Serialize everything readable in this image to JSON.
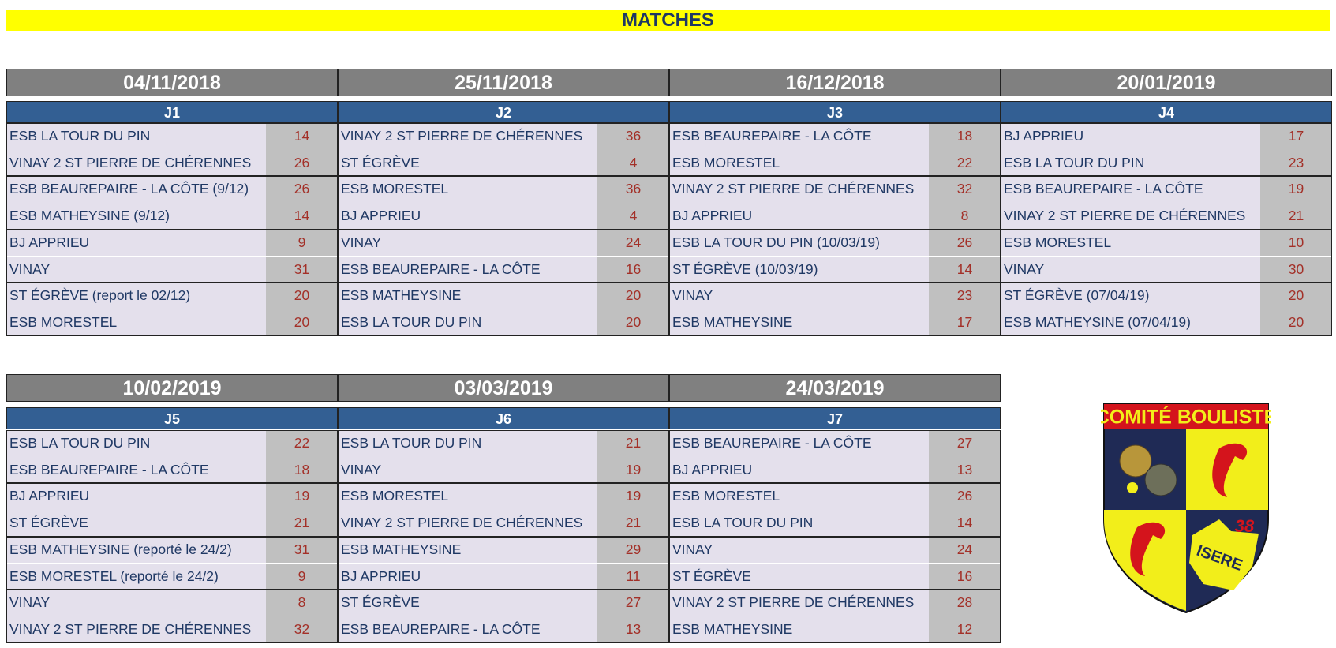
{
  "header": {
    "title": "MATCHES"
  },
  "rounds": [
    {
      "date": "04/11/2018",
      "label": "J1",
      "matches": [
        {
          "home": "ESB LA TOUR DU PIN",
          "home_score": 14,
          "away": "VINAY 2 ST PIERRE DE CHÉRENNES",
          "away_score": 26
        },
        {
          "home": "ESB BEAUREPAIRE - LA CÔTE (9/12)",
          "home_score": 26,
          "away": "ESB MATHEYSINE (9/12)",
          "away_score": 14
        },
        {
          "home": "BJ APPRIEU",
          "home_score": 9,
          "away": "VINAY",
          "away_score": 31
        },
        {
          "home": "ST ÉGRÈVE (report le 02/12)",
          "home_score": 20,
          "away": "ESB MORESTEL",
          "away_score": 20
        }
      ]
    },
    {
      "date": "25/11/2018",
      "label": "J2",
      "matches": [
        {
          "home": "VINAY 2 ST PIERRE DE CHÉRENNES",
          "home_score": 36,
          "away": "ST ÉGRÈVE",
          "away_score": 4
        },
        {
          "home": "ESB MORESTEL",
          "home_score": 36,
          "away": "BJ APPRIEU",
          "away_score": 4
        },
        {
          "home": "VINAY",
          "home_score": 24,
          "away": "ESB BEAUREPAIRE - LA CÔTE",
          "away_score": 16
        },
        {
          "home": "ESB MATHEYSINE",
          "home_score": 20,
          "away": "ESB LA TOUR DU PIN",
          "away_score": 20
        }
      ]
    },
    {
      "date": "16/12/2018",
      "label": "J3",
      "matches": [
        {
          "home": "ESB BEAUREPAIRE - LA CÔTE",
          "home_score": 18,
          "away": "ESB MORESTEL",
          "away_score": 22
        },
        {
          "home": "VINAY 2 ST PIERRE DE CHÉRENNES",
          "home_score": 32,
          "away": "BJ APPRIEU",
          "away_score": 8
        },
        {
          "home": "ESB LA TOUR DU PIN (10/03/19)",
          "home_score": 26,
          "away": "ST ÉGRÈVE (10/03/19)",
          "away_score": 14
        },
        {
          "home": "VINAY",
          "home_score": 23,
          "away": "ESB MATHEYSINE",
          "away_score": 17
        }
      ]
    },
    {
      "date": "20/01/2019",
      "label": "J4",
      "matches": [
        {
          "home": "BJ APPRIEU",
          "home_score": 17,
          "away": "ESB LA TOUR DU PIN",
          "away_score": 23
        },
        {
          "home": "ESB BEAUREPAIRE - LA CÔTE",
          "home_score": 19,
          "away": "VINAY 2 ST PIERRE DE CHÉRENNES",
          "away_score": 21
        },
        {
          "home": "ESB MORESTEL",
          "home_score": 10,
          "away": "VINAY",
          "away_score": 30
        },
        {
          "home": "ST ÉGRÈVE (07/04/19)",
          "home_score": 20,
          "away": "ESB MATHEYSINE (07/04/19)",
          "away_score": 20
        }
      ]
    },
    {
      "date": "10/02/2019",
      "label": "J5",
      "matches": [
        {
          "home": "ESB LA TOUR DU PIN",
          "home_score": 22,
          "away": "ESB BEAUREPAIRE - LA CÔTE",
          "away_score": 18
        },
        {
          "home": "BJ APPRIEU",
          "home_score": 19,
          "away": "ST ÉGRÈVE",
          "away_score": 21
        },
        {
          "home": "ESB MATHEYSINE (reporté le 24/2)",
          "home_score": 31,
          "away": "ESB MORESTEL (reporté le 24/2)",
          "away_score": 9
        },
        {
          "home": "VINAY",
          "home_score": 8,
          "away": "VINAY 2 ST PIERRE DE CHÉRENNES",
          "away_score": 32
        }
      ]
    },
    {
      "date": "03/03/2019",
      "label": "J6",
      "matches": [
        {
          "home": "ESB LA TOUR DU PIN",
          "home_score": 21,
          "away": "VINAY",
          "away_score": 19
        },
        {
          "home": "ESB MORESTEL",
          "home_score": 19,
          "away": "VINAY 2 ST PIERRE DE CHÉRENNES",
          "away_score": 21
        },
        {
          "home": "ESB MATHEYSINE",
          "home_score": 29,
          "away": "BJ APPRIEU",
          "away_score": 11
        },
        {
          "home": "ST ÉGRÈVE",
          "home_score": 27,
          "away": "ESB BEAUREPAIRE - LA CÔTE",
          "away_score": 13
        }
      ]
    },
    {
      "date": "24/03/2019",
      "label": "J7",
      "matches": [
        {
          "home": "ESB BEAUREPAIRE - LA CÔTE",
          "home_score": 27,
          "away": "BJ APPRIEU",
          "away_score": 13
        },
        {
          "home": "ESB MORESTEL",
          "home_score": 26,
          "away": "ESB LA TOUR DU PIN",
          "away_score": 14
        },
        {
          "home": "VINAY",
          "home_score": 24,
          "away": "ST ÉGRÈVE",
          "away_score": 16
        },
        {
          "home": "VINAY 2 ST PIERRE DE CHÉRENNES",
          "home_score": 28,
          "away": "ESB MATHEYSINE",
          "away_score": 12
        }
      ]
    }
  ],
  "logo": {
    "title": "COMITÉ BOULISTE",
    "region": "ISERE",
    "number": "38"
  }
}
